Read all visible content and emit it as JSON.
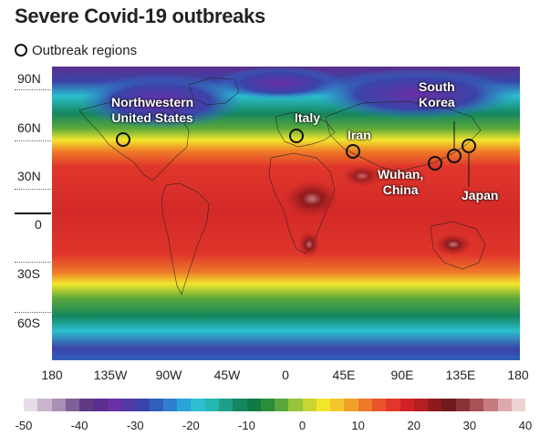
{
  "title": "Severe Covid-19 outbreaks",
  "legend": {
    "symbol": "circle-outline",
    "label": "Outbreak regions"
  },
  "latitude_labels": [
    "90N",
    "60N",
    "30N",
    "0",
    "30S",
    "60S"
  ],
  "longitude_labels": [
    "180",
    "135W",
    "90W",
    "45W",
    "0",
    "45E",
    "90E",
    "135E",
    "180"
  ],
  "outbreak_regions": [
    {
      "name": "Northwestern United States",
      "lines": [
        "Northwestern",
        "United States"
      ]
    },
    {
      "name": "Italy",
      "lines": [
        "Italy"
      ]
    },
    {
      "name": "Iran",
      "lines": [
        "Iran"
      ]
    },
    {
      "name": "Wuhan, China",
      "lines": [
        "Wuhan,",
        "China"
      ]
    },
    {
      "name": "South Korea",
      "lines": [
        "South",
        "Korea"
      ]
    },
    {
      "name": "Japan",
      "lines": [
        "Japan"
      ]
    }
  ],
  "color_scale": {
    "ticks": [
      "-50",
      "-40",
      "-30",
      "-20",
      "-10",
      "0",
      "10",
      "20",
      "30",
      "40"
    ],
    "colors": [
      "#e4dce6",
      "#c7b5cd",
      "#a98fb5",
      "#7f5f96",
      "#5e3b82",
      "#5a2f8f",
      "#6b2fa6",
      "#5238a3",
      "#3a44a8",
      "#2f5fbb",
      "#2f7fcf",
      "#2aa3d8",
      "#2bbfcf",
      "#22b8b0",
      "#1f9f8a",
      "#15865f",
      "#0f7a45",
      "#2a8d3b",
      "#5aa83a",
      "#96c43a",
      "#c9d631",
      "#f2e62c",
      "#f5c62a",
      "#f2a02a",
      "#ee7a28",
      "#e8552a",
      "#e0362b",
      "#cf2329",
      "#b41f24",
      "#8e1a1e",
      "#6f1a1e",
      "#8a3438",
      "#a85156",
      "#c57b80",
      "#dcaaad",
      "#eed3d5"
    ]
  }
}
